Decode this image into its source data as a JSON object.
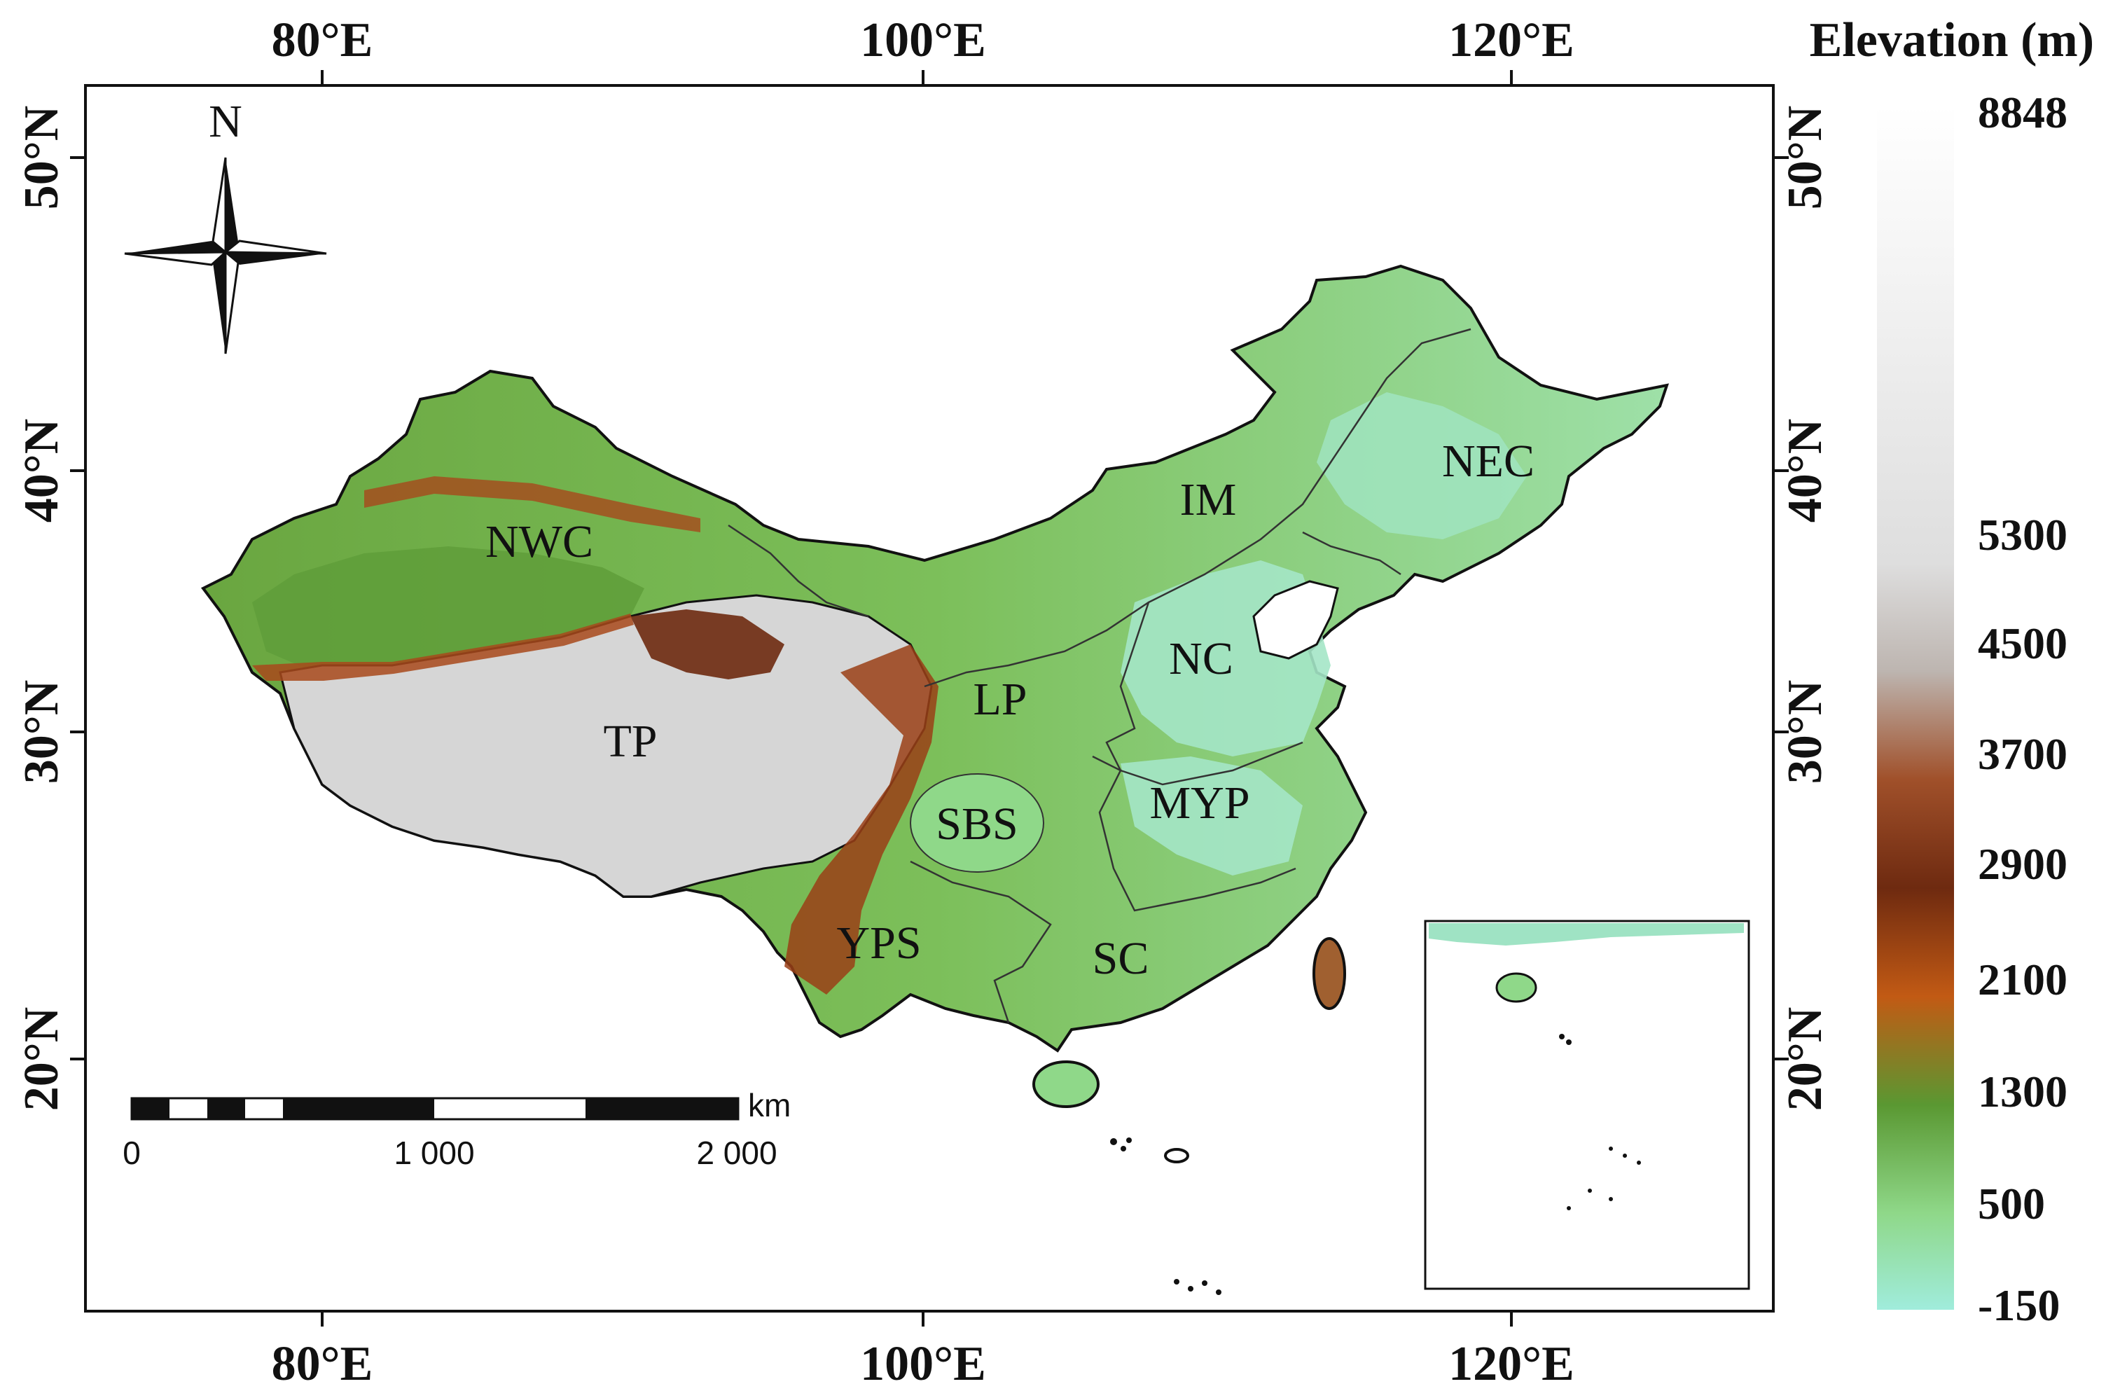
{
  "axes": {
    "top_ticks": [
      "80°E",
      "100°E",
      "120°E"
    ],
    "bottom_ticks": [
      "80°E",
      "100°E",
      "120°E"
    ],
    "left_ticks": [
      "50°N",
      "40°N",
      "30°N",
      "20°N"
    ],
    "right_ticks": [
      "50°N",
      "40°N",
      "30°N",
      "20°N"
    ]
  },
  "north_arrow": {
    "label": "N"
  },
  "regions": [
    "NWC",
    "IM",
    "NEC",
    "NC",
    "TP",
    "LP",
    "SBS",
    "MYP",
    "YPS",
    "SC"
  ],
  "scale_bar": {
    "unit": "km",
    "labels": [
      "0",
      "1 000",
      "2 000"
    ]
  },
  "legend": {
    "title": "Elevation (m)",
    "labels": [
      "8848",
      "5300",
      "4500",
      "3700",
      "2900",
      "2100",
      "1300",
      "500",
      "-150"
    ],
    "colors": [
      "#ffffff",
      "#e2e2e2",
      "#bfb6b0",
      "#a0502a",
      "#6e2a10",
      "#c25a14",
      "#5a9832",
      "#8fd889",
      "#9fe8d8"
    ]
  },
  "colors": {
    "lowland": "#9fe3c4",
    "plains": "#88d58c",
    "hills": "#5fa338",
    "mountain_brown": "#9a4a1e",
    "plateau": "#d8d8d8"
  }
}
